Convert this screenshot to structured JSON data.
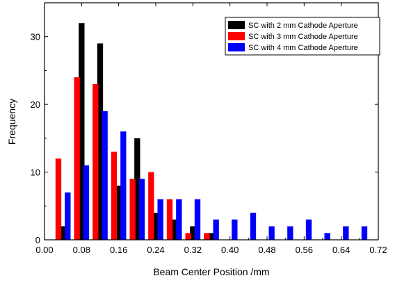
{
  "chart_data": {
    "type": "bar",
    "title": "",
    "xlabel": "Beam Center Position /mm",
    "ylabel": "Frequency",
    "xlim": [
      0.0,
      0.72
    ],
    "ylim": [
      0,
      35
    ],
    "x_ticks": [
      "0.00",
      "0.08",
      "0.16",
      "0.24",
      "0.32",
      "0.40",
      "0.48",
      "0.56",
      "0.64",
      "0.72"
    ],
    "x_tick_values": [
      0.0,
      0.08,
      0.16,
      0.24,
      0.32,
      0.4,
      0.48,
      0.56,
      0.64,
      0.72
    ],
    "y_ticks": [
      "0",
      "10",
      "20",
      "30"
    ],
    "y_tick_values": [
      0,
      10,
      20,
      30
    ],
    "grid": false,
    "legend_position": "top-right",
    "bar_width": 0.0125,
    "series": [
      {
        "name": "SC with 2 mm Cathode Aperture",
        "color": "#000000",
        "x": [
          0.04,
          0.08,
          0.12,
          0.16,
          0.2,
          0.24,
          0.28,
          0.32,
          0.36
        ],
        "values": [
          2,
          32,
          29,
          8,
          15,
          4,
          3,
          2,
          1
        ]
      },
      {
        "name": "SC with 3 mm Cathode Aperture",
        "color": "#ff0000",
        "x": [
          0.03,
          0.07,
          0.11,
          0.15,
          0.19,
          0.23,
          0.27,
          0.31,
          0.35
        ],
        "values": [
          12,
          24,
          23,
          13,
          9,
          10,
          6,
          1,
          1
        ]
      },
      {
        "name": "SC with 4 mm Cathode Aperture",
        "color": "#0000ff",
        "x": [
          0.05,
          0.09,
          0.13,
          0.17,
          0.21,
          0.25,
          0.29,
          0.33,
          0.37,
          0.41,
          0.45,
          0.49,
          0.53,
          0.57,
          0.61,
          0.65,
          0.69
        ],
        "values": [
          7,
          11,
          19,
          16,
          9,
          6,
          6,
          6,
          3,
          3,
          4,
          2,
          2,
          3,
          1,
          2,
          2
        ]
      }
    ]
  }
}
